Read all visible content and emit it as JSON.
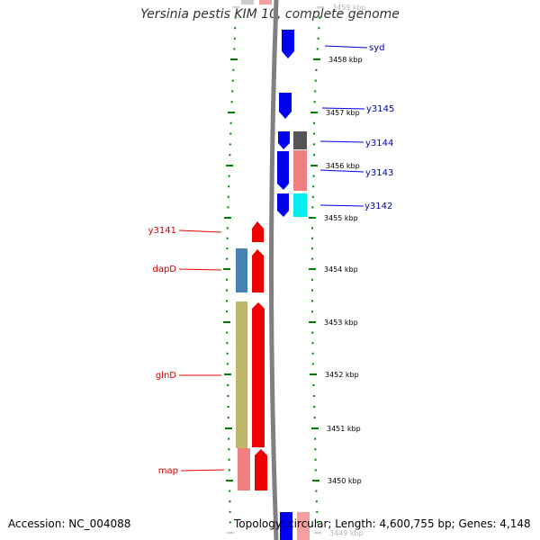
{
  "title": "Yersinia pestis KIM 10, complete genome",
  "footer": {
    "accession": "Accession: NC_004088",
    "topology": "Topology: circular; Length: 4,600,755 bp; Genes: 4,148"
  },
  "ticks": [
    {
      "label": "3459 kbp",
      "faded": true
    },
    {
      "label": "3458 kbp"
    },
    {
      "label": "3457 kbp"
    },
    {
      "label": "3456 kbp"
    },
    {
      "label": "3455 kbp"
    },
    {
      "label": "3454 kbp"
    },
    {
      "label": "3453 kbp"
    },
    {
      "label": "3452 kbp"
    },
    {
      "label": "3451 kbp"
    },
    {
      "label": "3450 kbp"
    },
    {
      "label": "3449 kbp",
      "faded": true
    }
  ],
  "forward_labels": [
    "syd",
    "y3145",
    "y3144",
    "y3143",
    "y3142"
  ],
  "reverse_labels": [
    "y3141",
    "dapD",
    "glnD",
    "map"
  ],
  "colors": {
    "forward": "#0000ee",
    "reverse": "#ee0000",
    "forward_label": "#0000aa",
    "reverse_label": "#cc0000",
    "tick": "#008000",
    "backbone": "#808080"
  }
}
